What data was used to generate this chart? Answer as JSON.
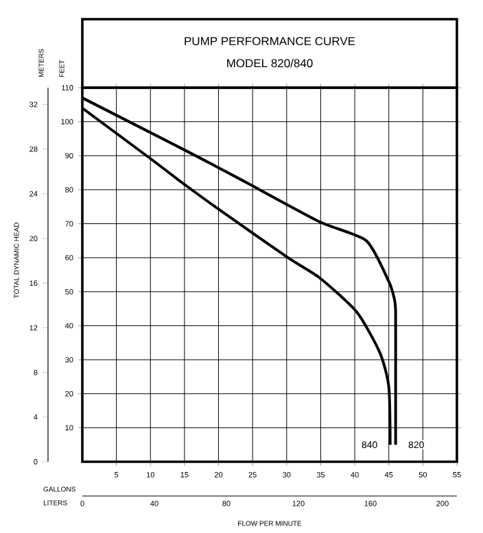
{
  "chart_data": {
    "type": "line",
    "title": "PUMP PERFORMANCE CURVE",
    "subtitle": "MODEL 820/840",
    "xlabel": "GALLONS",
    "x2label": "LITERS",
    "ylabel": "FEET",
    "y2label": "METERS",
    "annotations": [
      "TOTAL DYNAMIC HEAD",
      "FLOW PER MINUTE"
    ],
    "xlim": [
      0,
      55
    ],
    "xticks": [
      5,
      10,
      15,
      20,
      25,
      30,
      35,
      40,
      45,
      50,
      55
    ],
    "x2lim": [
      0,
      208
    ],
    "x2ticks": [
      0,
      40,
      80,
      120,
      160,
      200
    ],
    "ylim": [
      0,
      110
    ],
    "yticks": [
      10,
      20,
      30,
      40,
      50,
      60,
      70,
      80,
      90,
      100,
      110
    ],
    "y2lim": [
      0,
      33.5
    ],
    "y2ticks": [
      0,
      4,
      8,
      12,
      16,
      20,
      24,
      28,
      32
    ],
    "grid": true,
    "marker": "none",
    "line_style": "solid",
    "series": [
      {
        "name": "820",
        "color": "#000000",
        "x": [
          0,
          14.7,
          19.5,
          24.2,
          34.9,
          41.7,
          45,
          45.8,
          46,
          46,
          46
        ],
        "values": [
          107,
          92,
          87,
          82,
          70.5,
          65,
          53,
          48,
          44,
          25,
          5
        ]
      },
      {
        "name": "840",
        "color": "#000000",
        "x": [
          0,
          10.1,
          14.7,
          20.2,
          30.2,
          34.9,
          40.3,
          43.7,
          45,
          45.2
        ],
        "values": [
          104,
          89,
          82,
          74,
          60,
          54,
          44,
          32,
          22,
          5
        ]
      }
    ]
  }
}
